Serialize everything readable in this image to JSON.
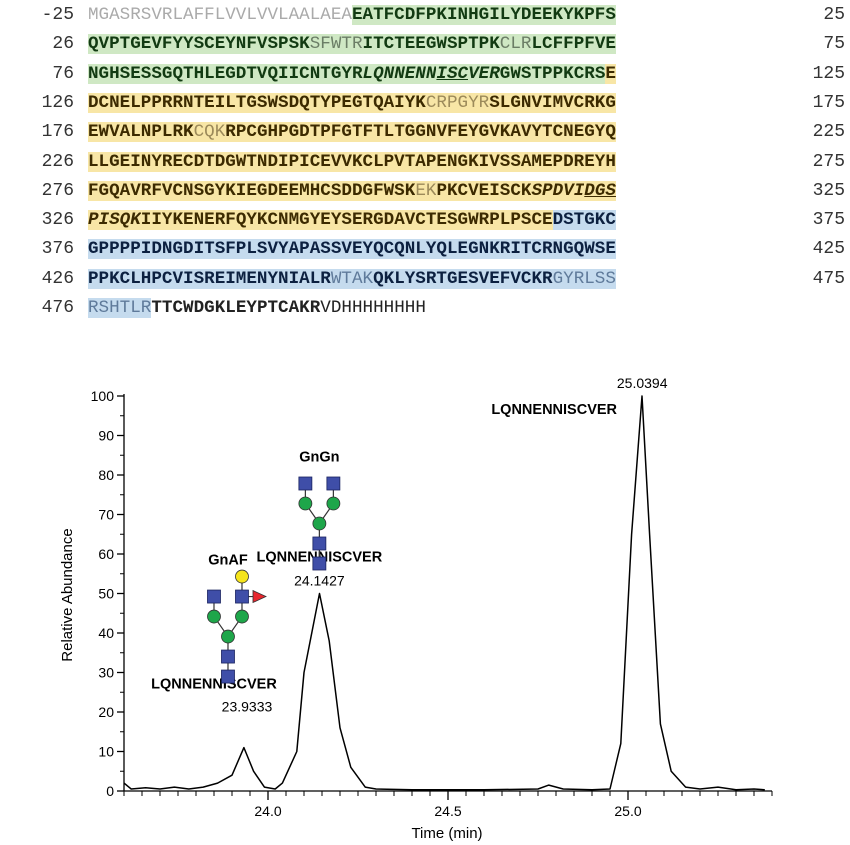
{
  "sequence": {
    "rows": [
      {
        "left": "-25",
        "right": "25",
        "segments": [
          {
            "t": "MGASRSVRLAFFLVVLVVLAALAEA",
            "c": "fg-gray"
          },
          {
            "t": "EATFCDFPKINHGILYDEEKYKPFS",
            "c": "bg-green fg-greenb b"
          }
        ]
      },
      {
        "left": "26",
        "right": "75",
        "segments": [
          {
            "t": "QVPTGEVFYYSCEYNFVSPSK",
            "c": "bg-green fg-greenb b"
          },
          {
            "t": "SFWTR",
            "c": "bg-green fg-green"
          },
          {
            "t": "ITCTEEGWSPTPK",
            "c": "bg-green fg-greenb b"
          },
          {
            "t": "CLR",
            "c": "bg-green fg-green"
          },
          {
            "t": "LCFFPFVE",
            "c": "bg-green fg-greenb b"
          }
        ]
      },
      {
        "left": "76",
        "right": "125",
        "segments": [
          {
            "t": "NGHSESSGQTHLEGDTVQIICNTGYR",
            "c": "bg-green fg-greenb b"
          },
          {
            "t": "LQNNENN",
            "c": "bg-green fg-greenb b i"
          },
          {
            "t": "ISC",
            "c": "bg-green fg-greenb b i u"
          },
          {
            "t": "VER",
            "c": "bg-green fg-greenb b i"
          },
          {
            "t": "GWSTPPKCRS",
            "c": "bg-green fg-greenb b"
          },
          {
            "t": "E",
            "c": "bg-yellow fg-yellowb b"
          }
        ]
      },
      {
        "left": "126",
        "right": "175",
        "segments": [
          {
            "t": "DCNELPPRRNTEILTGSWSDQTYPEGTQAIYK",
            "c": "bg-yellow fg-yellowb b"
          },
          {
            "t": "CRPGYR",
            "c": "bg-yellow fg-yellow"
          },
          {
            "t": "SLGNVIMVCRKG",
            "c": "bg-yellow fg-yellowb b"
          }
        ]
      },
      {
        "left": "176",
        "right": "225",
        "segments": [
          {
            "t": "EWVALNPLRK",
            "c": "bg-yellow fg-yellowb b"
          },
          {
            "t": "CQK",
            "c": "bg-yellow fg-yellow"
          },
          {
            "t": "RPCGHPGDTPFGTFTLTGGNVFEYGVKAVYTCNEGYQ",
            "c": "bg-yellow fg-yellowb b"
          }
        ]
      },
      {
        "left": "226",
        "right": "275",
        "segments": [
          {
            "t": "LLGEINYRECDTDGWTNDIPICEVVKCLPVTAPENGKIVSSAMEPDREYH",
            "c": "bg-yellow fg-yellowb b"
          }
        ]
      },
      {
        "left": "276",
        "right": "325",
        "segments": [
          {
            "t": "FGQAVRFVCNSGYKIEGDEEMHCSDDGFWSK",
            "c": "bg-yellow fg-yellowb b"
          },
          {
            "t": "EK",
            "c": "bg-yellow fg-yellow"
          },
          {
            "t": "PKCVEISCK",
            "c": "bg-yellow fg-yellowb b"
          },
          {
            "t": "SPDVI",
            "c": "bg-yellow fg-yellowb b i"
          },
          {
            "t": "DGS",
            "c": "bg-yellow fg-yellowb b i u"
          }
        ]
      },
      {
        "left": "326",
        "right": "375",
        "segments": [
          {
            "t": "PISQK",
            "c": "bg-yellow fg-yellowb b i"
          },
          {
            "t": "IIYKENERFQYKCNMGYEYSERGDAVCTESGWRPLPSCE",
            "c": "bg-yellow fg-yellowb b"
          },
          {
            "t": "DSTGKC",
            "c": "bg-blue fg-blueb b"
          }
        ]
      },
      {
        "left": "376",
        "right": "425",
        "segments": [
          {
            "t": "GPPPPIDNGDITSFPLSVYAPASSVEYQCQNLYQLEGNKRITCRNGQWSE",
            "c": "bg-blue fg-blueb b"
          }
        ]
      },
      {
        "left": "426",
        "right": "475",
        "segments": [
          {
            "t": "PPKCLHPCVISREIMENYNIALR",
            "c": "bg-blue fg-blueb b"
          },
          {
            "t": "WTAK",
            "c": "bg-blue fg-blue"
          },
          {
            "t": "QKLYSRTGESVEFVCKR",
            "c": "bg-blue fg-blueb b"
          },
          {
            "t": "GYRLSS",
            "c": "bg-blue fg-blue"
          }
        ]
      },
      {
        "left": "476",
        "right": "",
        "segments": [
          {
            "t": "RSHTLR",
            "c": "bg-blue fg-blue"
          },
          {
            "t": "TTCWDGKLEYPTCAKR",
            "c": "fg-black b"
          },
          {
            "t": "VDHHHHHHHH",
            "c": "fg-black"
          }
        ]
      }
    ]
  },
  "chart_data": {
    "type": "line",
    "xlabel": "Time (min)",
    "ylabel": "Relative Abundance",
    "xlim": [
      23.6,
      25.4
    ],
    "ylim": [
      0,
      100
    ],
    "x_ticks": [
      24.0,
      24.5,
      25.0
    ],
    "x_tick_labels": [
      "24.0",
      "24.5",
      "25.0"
    ],
    "y_ticks": [
      0,
      10,
      20,
      30,
      40,
      50,
      60,
      70,
      80,
      90,
      100
    ],
    "series": [
      {
        "x": [
          23.6,
          23.62,
          23.66,
          23.7,
          23.74,
          23.78,
          23.82,
          23.86,
          23.9,
          23.933,
          23.96,
          23.99,
          24.02,
          24.04,
          24.08,
          24.1,
          24.143,
          24.17,
          24.2,
          24.23,
          24.27,
          24.3,
          24.4,
          24.6,
          24.75,
          24.78,
          24.82,
          24.9,
          24.95,
          24.98,
          25.01,
          25.039,
          25.06,
          25.09,
          25.12,
          25.16,
          25.2,
          25.25,
          25.3,
          25.35,
          25.38
        ],
        "y": [
          2,
          0.5,
          0.8,
          0.5,
          1,
          0.5,
          1,
          2,
          4,
          11,
          5,
          1,
          0.5,
          2,
          10,
          30,
          50,
          38,
          16,
          6,
          1,
          0.5,
          0.3,
          0.3,
          0.5,
          1.5,
          0.5,
          0.3,
          0.5,
          12,
          65,
          100,
          65,
          17,
          5,
          1,
          0.5,
          1,
          0.3,
          0.5,
          0.3
        ]
      }
    ],
    "peaks": [
      {
        "x": 23.9333,
        "y": 11,
        "rt_label": "23.9333",
        "peptide": "LQNNENNISCVER",
        "glycan": "GnAF"
      },
      {
        "x": 24.1427,
        "y": 50,
        "rt_label": "24.1427",
        "peptide": "LQNNENNISCVER",
        "glycan": "GnGn"
      },
      {
        "x": 25.0394,
        "y": 100,
        "rt_label": "25.0394",
        "peptide": "LQNNENNISCVER",
        "glycan": ""
      }
    ],
    "colors": {
      "hexnac": "#3f4ea8",
      "mannose": "#1ea64a",
      "galactose": "#f5e41c",
      "fucose": "#e8262d",
      "line": "#000000"
    }
  }
}
